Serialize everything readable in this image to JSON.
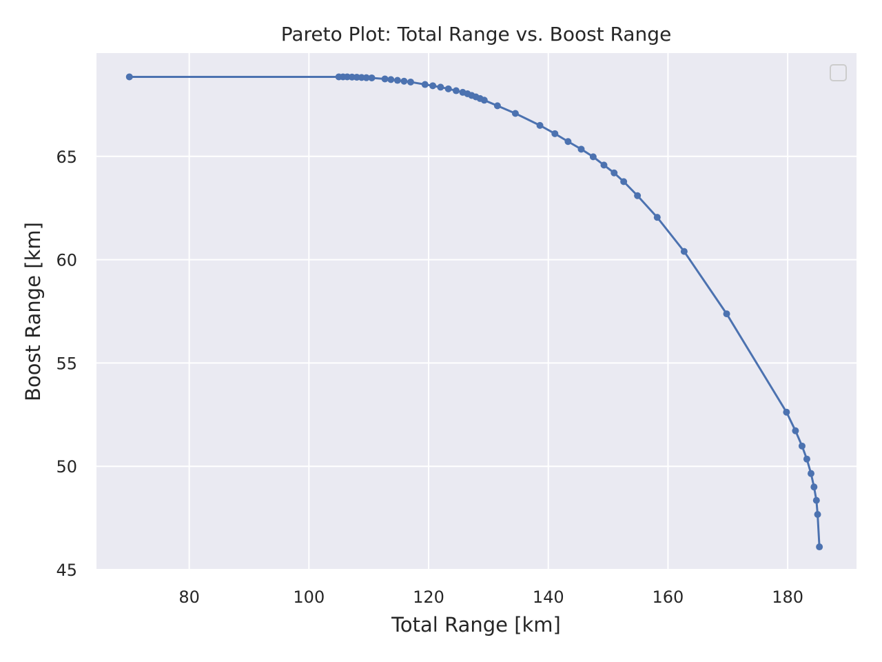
{
  "chart_data": {
    "type": "line",
    "title": "Pareto Plot: Total Range vs. Boost Range",
    "xlabel": "Total Range [km]",
    "ylabel": "Boost Range [km]",
    "xlim": [
      64.5,
      191.5
    ],
    "ylim": [
      45,
      70
    ],
    "xticks": [
      80,
      100,
      120,
      140,
      160,
      180
    ],
    "yticks": [
      45,
      50,
      55,
      60,
      65
    ],
    "grid": true,
    "legend": "top-right (empty)",
    "colors": {
      "plot_bg": "#eaeaf2",
      "grid": "#ffffff",
      "series": "#4c72b0",
      "text": "#262626"
    },
    "series": [
      {
        "marker": "circle",
        "x": [
          70.0,
          105.0,
          105.7,
          106.4,
          107.2,
          108.0,
          108.8,
          109.6,
          110.5,
          112.7,
          113.7,
          114.8,
          115.9,
          117.0,
          119.4,
          120.7,
          122.0,
          123.3,
          124.6,
          125.7,
          126.5,
          127.2,
          127.9,
          128.6,
          129.3,
          131.5,
          134.5,
          138.6,
          141.1,
          143.3,
          145.5,
          147.5,
          149.3,
          151.0,
          152.6,
          154.9,
          158.2,
          162.7,
          169.8,
          179.8,
          181.3,
          182.4,
          183.2,
          183.9,
          184.4,
          184.8,
          185.0,
          185.3
        ],
        "y": [
          68.85,
          68.85,
          68.85,
          68.85,
          68.84,
          68.83,
          68.82,
          68.81,
          68.8,
          68.75,
          68.72,
          68.68,
          68.64,
          68.6,
          68.48,
          68.42,
          68.35,
          68.27,
          68.18,
          68.1,
          68.03,
          67.95,
          67.88,
          67.8,
          67.72,
          67.45,
          67.08,
          66.5,
          66.1,
          65.72,
          65.35,
          64.98,
          64.58,
          64.2,
          63.78,
          63.1,
          62.05,
          60.4,
          57.38,
          52.62,
          51.72,
          50.98,
          50.35,
          49.65,
          49.0,
          48.35,
          47.67,
          46.1
        ]
      }
    ]
  }
}
